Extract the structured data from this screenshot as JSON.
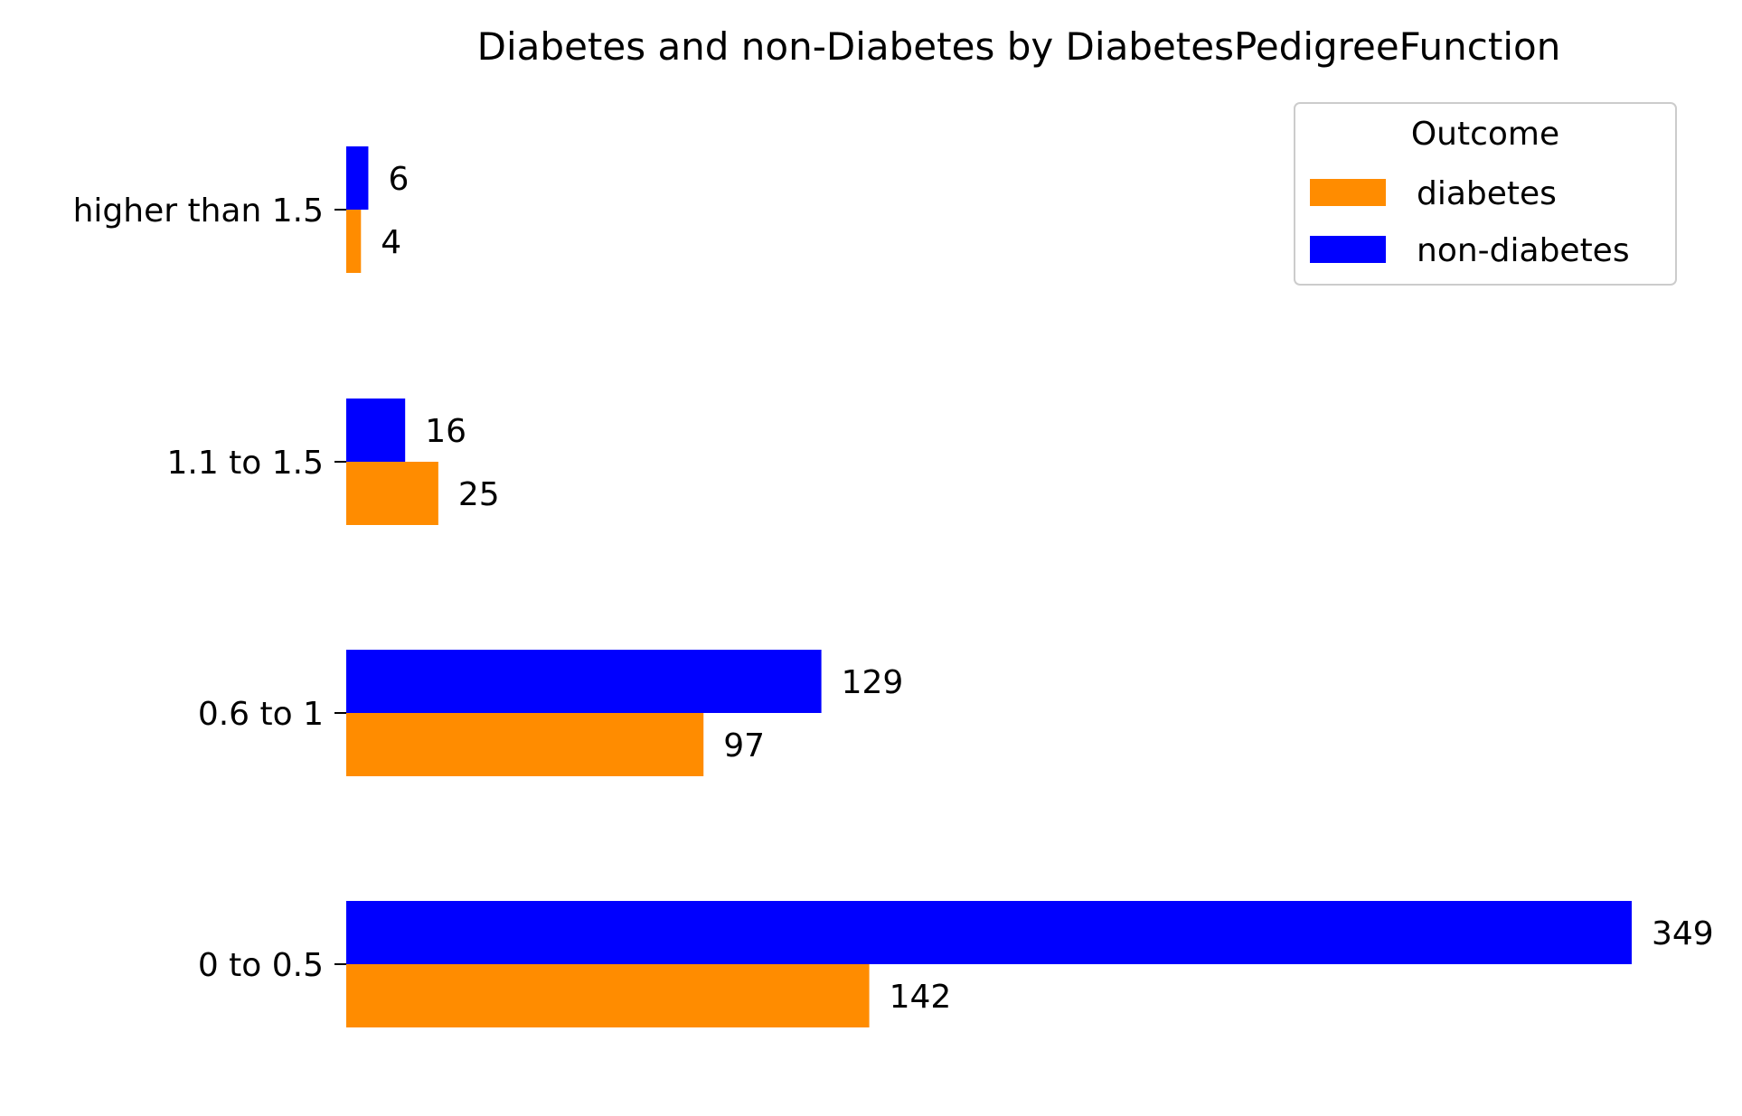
{
  "chart_data": {
    "type": "bar",
    "orientation": "horizontal",
    "title": "Diabetes and non-Diabetes by DiabetesPedigreeFunction",
    "xlabel": "",
    "ylabel": "",
    "categories": [
      "0 to 0.5",
      "0.6 to 1",
      "1.1 to 1.5",
      "higher than 1.5"
    ],
    "series": [
      {
        "name": "diabetes",
        "color": "#ff8c00",
        "values": [
          142,
          97,
          25,
          4
        ]
      },
      {
        "name": "non-diabetes",
        "color": "#0000ff",
        "values": [
          349,
          129,
          16,
          6
        ]
      }
    ],
    "xlim": [
      0,
      349
    ],
    "grid": false,
    "show_data_labels": true,
    "legend": {
      "title": "Outcome",
      "placement": "top-right"
    }
  }
}
